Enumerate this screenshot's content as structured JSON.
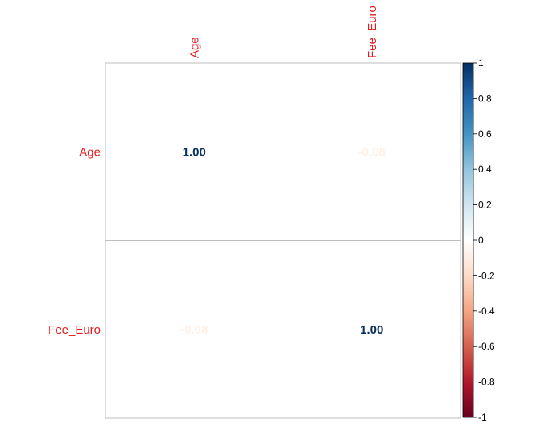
{
  "chart_data": {
    "type": "heatmap",
    "method": "number",
    "variables": [
      "Age",
      "Fee_Euro"
    ],
    "matrix": [
      [
        1.0,
        -0.08
      ],
      [
        -0.08,
        1.0
      ]
    ],
    "cell_labels": [
      [
        "1.00",
        "-0.08"
      ],
      [
        "-0.08",
        "1.00"
      ]
    ],
    "label_color": "#e41a1c",
    "grid": true,
    "grid_color": "#bebebe",
    "colorbar": {
      "range": [
        -1,
        1
      ],
      "ticks": [
        "1",
        "0.8",
        "0.6",
        "0.4",
        "0.2",
        "0",
        "-0.2",
        "-0.4",
        "-0.6",
        "-0.8",
        "-1"
      ],
      "placement": "right",
      "colors": [
        "#67001F",
        "#B2182B",
        "#D6604D",
        "#F4A582",
        "#FDDBC7",
        "#FFFFFF",
        "#D1E5F0",
        "#92C5DE",
        "#4393C3",
        "#2166AC",
        "#053061"
      ]
    }
  }
}
